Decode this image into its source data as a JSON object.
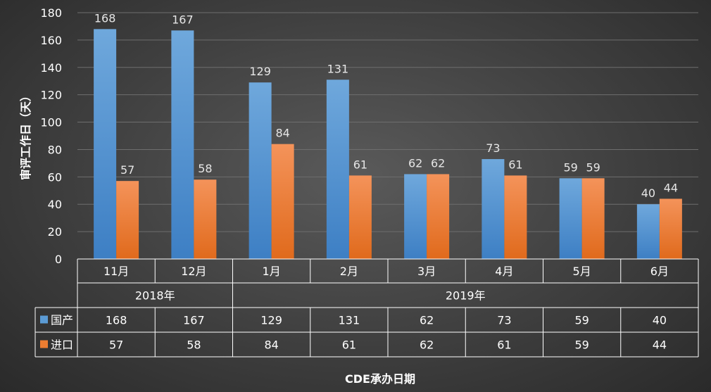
{
  "chart_data": {
    "type": "bar",
    "ylabel": "审评工作日（天）",
    "xlabel": "CDE承办日期",
    "ylim": [
      0,
      180
    ],
    "yticks": [
      0,
      20,
      40,
      60,
      80,
      100,
      120,
      140,
      160,
      180
    ],
    "grid": true,
    "categories": [
      "11月",
      "12月",
      "1月",
      "2月",
      "3月",
      "4月",
      "5月",
      "6月"
    ],
    "groups": [
      {
        "label": "2018年",
        "span": 2
      },
      {
        "label": "2019年",
        "span": 6
      }
    ],
    "series": [
      {
        "name": "国产",
        "color": "#5b9bd5",
        "values": [
          168,
          167,
          129,
          131,
          62,
          73,
          59,
          40
        ]
      },
      {
        "name": "进口",
        "color": "#ed7d31",
        "values": [
          57,
          58,
          84,
          61,
          62,
          61,
          59,
          44
        ]
      }
    ]
  }
}
